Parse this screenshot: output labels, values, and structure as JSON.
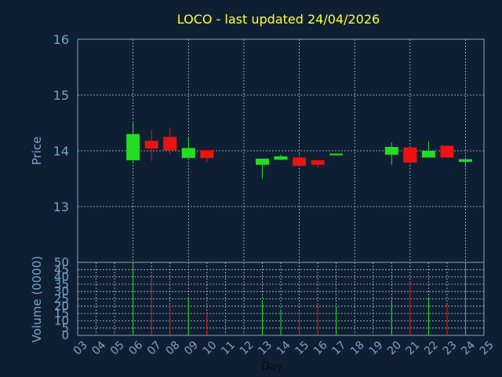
{
  "chart_data": [
    {
      "type": "candlestick",
      "title": "LOCO - last updated 24/04/2026",
      "ylabel": "Price",
      "ylim": [
        12,
        16
      ],
      "yticks": [
        13,
        14,
        15,
        16
      ],
      "grid": true,
      "colors": {
        "up": "#22dd22",
        "down": "#ee1111",
        "background": "#0f1f33",
        "title": "#ffff33",
        "axis_text": "#7da1c4"
      },
      "candles": [
        {
          "day": "06",
          "open": 13.83,
          "high": 14.5,
          "low": 13.78,
          "close": 14.3
        },
        {
          "day": "07",
          "open": 14.18,
          "high": 14.38,
          "low": 13.82,
          "close": 14.04
        },
        {
          "day": "08",
          "open": 14.25,
          "high": 14.42,
          "low": 13.94,
          "close": 14.01
        },
        {
          "day": "09",
          "open": 13.87,
          "high": 14.25,
          "low": 13.87,
          "close": 14.05
        },
        {
          "day": "10",
          "open": 14.01,
          "high": 14.01,
          "low": 13.8,
          "close": 13.87
        },
        {
          "day": "13",
          "open": 13.75,
          "high": 13.85,
          "low": 13.5,
          "close": 13.86
        },
        {
          "day": "14",
          "open": 13.84,
          "high": 13.93,
          "low": 13.84,
          "close": 13.9
        },
        {
          "day": "15",
          "open": 13.88,
          "high": 13.95,
          "low": 13.73,
          "close": 13.73
        },
        {
          "day": "16",
          "open": 13.83,
          "high": 13.83,
          "low": 13.7,
          "close": 13.75
        },
        {
          "day": "17",
          "open": 13.93,
          "high": 13.95,
          "low": 13.92,
          "close": 13.95
        },
        {
          "day": "20",
          "open": 13.93,
          "high": 14.15,
          "low": 13.75,
          "close": 14.07
        },
        {
          "day": "21",
          "open": 14.06,
          "high": 14.06,
          "low": 13.78,
          "close": 13.79
        },
        {
          "day": "22",
          "open": 13.88,
          "high": 14.17,
          "low": 13.88,
          "close": 14.0
        },
        {
          "day": "23",
          "open": 14.09,
          "high": 14.09,
          "low": 13.87,
          "close": 13.88
        },
        {
          "day": "24",
          "open": 13.8,
          "high": 13.87,
          "low": 13.71,
          "close": 13.85
        }
      ]
    },
    {
      "type": "bar",
      "ylabel": "Volume (0000)",
      "xlabel": "Day",
      "ylim": [
        0,
        50
      ],
      "yticks": [
        0,
        5,
        10,
        15,
        20,
        25,
        30,
        35,
        40,
        45,
        50
      ],
      "grid": true,
      "categories": [
        "03",
        "04",
        "05",
        "06",
        "07",
        "08",
        "09",
        "10",
        "11",
        "12",
        "13",
        "14",
        "15",
        "16",
        "17",
        "18",
        "19",
        "20",
        "21",
        "22",
        "23",
        "24",
        "25"
      ],
      "volumes": [
        {
          "day": "06",
          "value": 49,
          "dir": "up"
        },
        {
          "day": "07",
          "value": 39,
          "dir": "down"
        },
        {
          "day": "08",
          "value": 20,
          "dir": "down"
        },
        {
          "day": "09",
          "value": 25,
          "dir": "up"
        },
        {
          "day": "10",
          "value": 15,
          "dir": "down"
        },
        {
          "day": "13",
          "value": 24,
          "dir": "up"
        },
        {
          "day": "14",
          "value": 18,
          "dir": "up"
        },
        {
          "day": "15",
          "value": 17,
          "dir": "down"
        },
        {
          "day": "16",
          "value": 19,
          "dir": "down"
        },
        {
          "day": "17",
          "value": 20,
          "dir": "up"
        },
        {
          "day": "20",
          "value": 24,
          "dir": "up"
        },
        {
          "day": "21",
          "value": 36,
          "dir": "down"
        },
        {
          "day": "22",
          "value": 26,
          "dir": "up"
        },
        {
          "day": "23",
          "value": 21,
          "dir": "down"
        },
        {
          "day": "24",
          "value": 50,
          "dir": "up"
        }
      ]
    }
  ]
}
